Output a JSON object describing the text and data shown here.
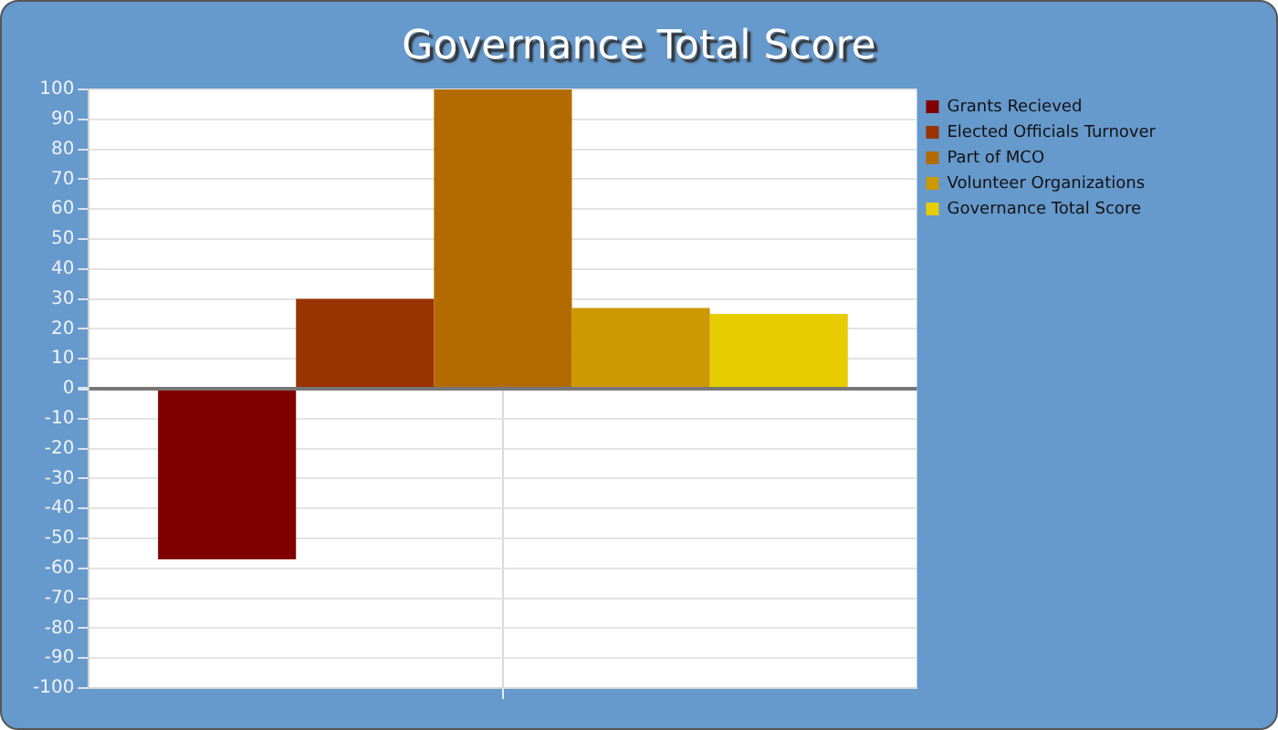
{
  "chart_data": {
    "type": "bar",
    "title": "Governance Total Score",
    "categories": [
      null
    ],
    "series": [
      {
        "name": "Grants Recieved",
        "color": "#800000",
        "values": [
          -57
        ]
      },
      {
        "name": "Elected Officials Turnover",
        "color": "#993300",
        "values": [
          30
        ]
      },
      {
        "name": "Part of MCO",
        "color": "#b36b00",
        "values": [
          100
        ]
      },
      {
        "name": "Volunteer Organizations",
        "color": "#cc9900",
        "values": [
          27
        ]
      },
      {
        "name": "Governance Total Score",
        "color": "#e6cc00",
        "values": [
          25
        ]
      }
    ],
    "ylim": [
      -100,
      100
    ],
    "yticks": [
      -100,
      -90,
      -80,
      -70,
      -60,
      -50,
      -40,
      -30,
      -20,
      -10,
      0,
      10,
      20,
      30,
      40,
      50,
      60,
      70,
      80,
      90,
      100
    ],
    "grid": true,
    "legend": "top right",
    "tick_labels": "y"
  }
}
